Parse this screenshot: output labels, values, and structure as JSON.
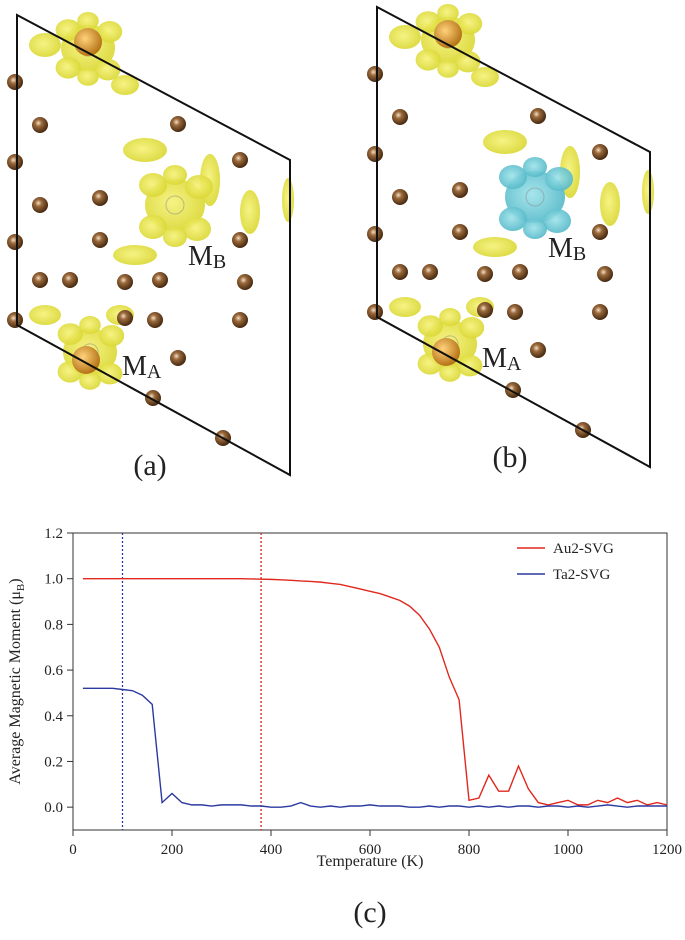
{
  "panels": [
    {
      "label": "(a)",
      "sites": [
        {
          "main": "M",
          "sub": "B"
        },
        {
          "main": "M",
          "sub": "A"
        }
      ]
    },
    {
      "label": "(b)",
      "sites": [
        {
          "main": "M",
          "sub": "B"
        },
        {
          "main": "M",
          "sub": "A"
        }
      ]
    }
  ],
  "chart_data": {
    "type": "line",
    "panel_label": "(c)",
    "xlabel": "Temperature (K)",
    "ylabel": {
      "text": "Average Magnetic Moment (μ",
      "sub": "B",
      "end": ")"
    },
    "xlim": [
      0,
      1200
    ],
    "xticks": [
      0,
      200,
      400,
      600,
      800,
      1000,
      1200
    ],
    "ylim": [
      -0.1,
      1.2
    ],
    "yticks": [
      {
        "value": 0,
        "label": "0.0"
      },
      0.2,
      0.4,
      0.6,
      0.8,
      {
        "value": 1,
        "label": "1.0"
      },
      1.2
    ],
    "legend": "upper right",
    "vlines": [
      {
        "x": 100,
        "color": "#2b3aa0"
      },
      {
        "x": 380,
        "color": "#d62020"
      }
    ],
    "x": [
      20,
      40,
      60,
      80,
      100,
      120,
      140,
      160,
      180,
      200,
      220,
      240,
      260,
      280,
      300,
      320,
      340,
      360,
      380,
      400,
      420,
      440,
      460,
      480,
      500,
      520,
      540,
      560,
      580,
      600,
      620,
      640,
      660,
      680,
      700,
      720,
      740,
      760,
      780,
      800,
      820,
      840,
      860,
      880,
      900,
      920,
      940,
      960,
      980,
      1000,
      1020,
      1040,
      1060,
      1080,
      1100,
      1120,
      1140,
      1160,
      1180,
      1200
    ],
    "series": [
      {
        "name": "Au2-SVG",
        "color": "#e0281e",
        "values": [
          1.0,
          1.0,
          1.0,
          1.0,
          1.0,
          1.0,
          1.0,
          1.0,
          1.0,
          1.0,
          1.0,
          1.0,
          1.0,
          1.0,
          1.0,
          1.0,
          1.0,
          0.999,
          0.998,
          0.997,
          0.995,
          0.993,
          0.99,
          0.988,
          0.985,
          0.98,
          0.975,
          0.965,
          0.955,
          0.945,
          0.935,
          0.92,
          0.905,
          0.88,
          0.84,
          0.78,
          0.7,
          0.57,
          0.47,
          0.03,
          0.04,
          0.14,
          0.07,
          0.07,
          0.18,
          0.08,
          0.02,
          0.01,
          0.02,
          0.03,
          0.01,
          0.01,
          0.03,
          0.02,
          0.04,
          0.02,
          0.03,
          0.01,
          0.02,
          0.01
        ]
      },
      {
        "name": "Ta2-SVG",
        "color": "#2b3aa0",
        "values": [
          0.52,
          0.52,
          0.52,
          0.52,
          0.515,
          0.51,
          0.49,
          0.45,
          0.02,
          0.06,
          0.02,
          0.01,
          0.01,
          0.005,
          0.01,
          0.01,
          0.01,
          0.005,
          0.005,
          0.0,
          0.0,
          0.005,
          0.02,
          0.005,
          0.0,
          0.005,
          0.0,
          0.005,
          0.005,
          0.01,
          0.005,
          0.005,
          0.005,
          0.0,
          0.0,
          0.005,
          0.0,
          0.005,
          0.005,
          0.0,
          0.005,
          0.0,
          0.005,
          0.0,
          0.005,
          0.005,
          0.0,
          0.005,
          0.005,
          0.0,
          0.005,
          0.0,
          0.005,
          0.01,
          0.005,
          0.0,
          0.005,
          0.005,
          0.005,
          0.005
        ]
      }
    ]
  }
}
